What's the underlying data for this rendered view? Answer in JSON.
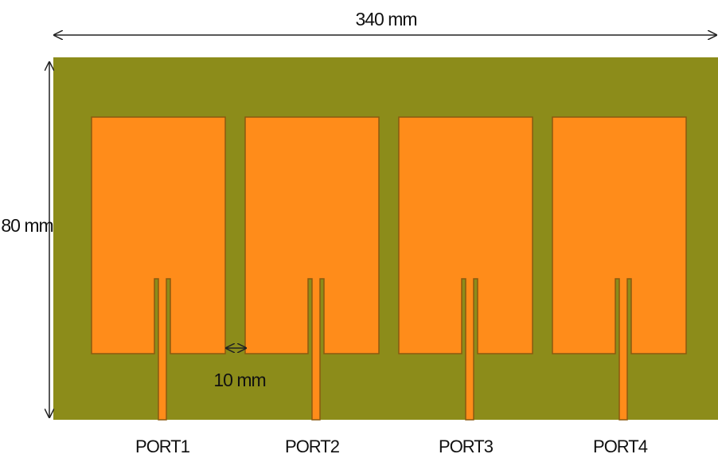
{
  "dimensions": {
    "width_label": "340 mm",
    "height_label": "80 mm",
    "gap_label": "10 mm"
  },
  "colors": {
    "substrate": "#8c8c1a",
    "patch": "#ff8c1a",
    "patch_edge": "#8a5a10",
    "arrow": "#222222"
  },
  "ports": [
    {
      "label": "PORT1"
    },
    {
      "label": "PORT2"
    },
    {
      "label": "PORT3"
    },
    {
      "label": "PORT4"
    }
  ]
}
